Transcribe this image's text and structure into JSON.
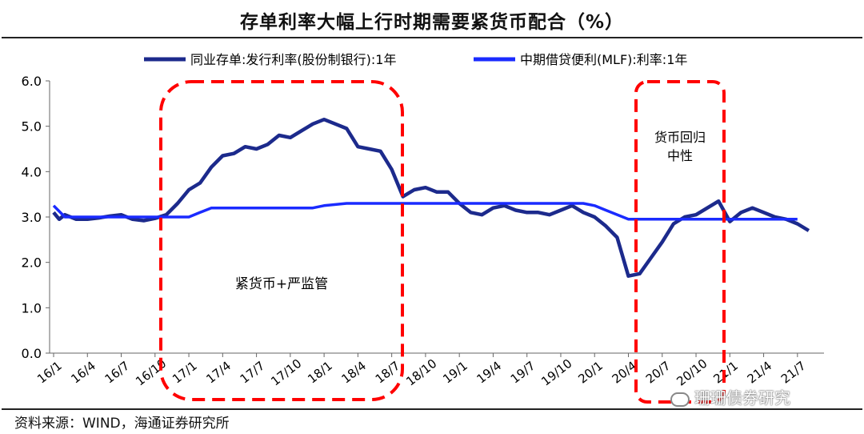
{
  "title": "存单利率大幅上行时期需要紧货币配合（%）",
  "source": "资料来源：WIND，海通证券研究所",
  "watermark": "珊珊债券研究",
  "colors": {
    "series_ncd": "#1c2a8c",
    "series_mlf": "#1a2bff",
    "highlight": "#ff0000",
    "axis": "#666666"
  },
  "chart_data": {
    "type": "line",
    "ylim": [
      0,
      6
    ],
    "yticks": [
      "0.0",
      "1.0",
      "2.0",
      "3.0",
      "4.0",
      "5.0",
      "6.0"
    ],
    "xticks": [
      "16/1",
      "16/4",
      "16/7",
      "16/10",
      "17/1",
      "17/4",
      "17/7",
      "17/10",
      "18/1",
      "18/4",
      "18/7",
      "18/10",
      "19/1",
      "19/4",
      "19/7",
      "19/10",
      "20/1",
      "20/4",
      "20/7",
      "20/10",
      "21/1",
      "21/4",
      "21/7"
    ],
    "grid": false,
    "legend_position": "top",
    "series": [
      {
        "name": "同业存单:发行利率(股份制银行):1年",
        "points": [
          [
            "16/1",
            3.1
          ],
          [
            "16/1.5",
            2.95
          ],
          [
            "16/2",
            3.05
          ],
          [
            "16/3",
            2.95
          ],
          [
            "16/4",
            2.95
          ],
          [
            "16/5",
            2.98
          ],
          [
            "16/6",
            3.02
          ],
          [
            "16/7",
            3.05
          ],
          [
            "16/8",
            2.95
          ],
          [
            "16/9",
            2.92
          ],
          [
            "16/10",
            2.97
          ],
          [
            "16/11",
            3.05
          ],
          [
            "16/12",
            3.3
          ],
          [
            "17/1",
            3.6
          ],
          [
            "17/2",
            3.75
          ],
          [
            "17/3",
            4.1
          ],
          [
            "17/4",
            4.35
          ],
          [
            "17/5",
            4.4
          ],
          [
            "17/6",
            4.55
          ],
          [
            "17/7",
            4.5
          ],
          [
            "17/8",
            4.6
          ],
          [
            "17/9",
            4.8
          ],
          [
            "17/10",
            4.75
          ],
          [
            "17/11",
            4.9
          ],
          [
            "17/12",
            5.05
          ],
          [
            "18/1",
            5.15
          ],
          [
            "18/2",
            5.05
          ],
          [
            "18/3",
            4.95
          ],
          [
            "18/4",
            4.55
          ],
          [
            "18/5",
            4.5
          ],
          [
            "18/6",
            4.45
          ],
          [
            "18/7",
            4.05
          ],
          [
            "18/8",
            3.45
          ],
          [
            "18/9",
            3.6
          ],
          [
            "18/10",
            3.65
          ],
          [
            "18/11",
            3.55
          ],
          [
            "18/12",
            3.55
          ],
          [
            "19/1",
            3.3
          ],
          [
            "19/2",
            3.1
          ],
          [
            "19/3",
            3.05
          ],
          [
            "19/4",
            3.2
          ],
          [
            "19/5",
            3.25
          ],
          [
            "19/6",
            3.15
          ],
          [
            "19/7",
            3.1
          ],
          [
            "19/8",
            3.1
          ],
          [
            "19/9",
            3.05
          ],
          [
            "19/10",
            3.15
          ],
          [
            "19/11",
            3.25
          ],
          [
            "19/12",
            3.1
          ],
          [
            "20/1",
            3.0
          ],
          [
            "20/2",
            2.8
          ],
          [
            "20/3",
            2.55
          ],
          [
            "20/4",
            1.7
          ],
          [
            "20/5",
            1.75
          ],
          [
            "20/6",
            2.1
          ],
          [
            "20/7",
            2.45
          ],
          [
            "20/8",
            2.85
          ],
          [
            "20/9",
            3.0
          ],
          [
            "20/10",
            3.05
          ],
          [
            "20/11",
            3.2
          ],
          [
            "20/12",
            3.35
          ],
          [
            "21/1",
            2.9
          ],
          [
            "21/2",
            3.1
          ],
          [
            "21/3",
            3.2
          ],
          [
            "21/4",
            3.1
          ],
          [
            "21/5",
            3.0
          ],
          [
            "21/6",
            2.95
          ],
          [
            "21/7",
            2.85
          ],
          [
            "21/8",
            2.7
          ]
        ]
      },
      {
        "name": "中期借贷便利(MLF):利率:1年",
        "points": [
          [
            "16/1",
            3.25
          ],
          [
            "16/2",
            3.0
          ],
          [
            "16/10",
            3.0
          ],
          [
            "17/1",
            3.0
          ],
          [
            "17/2",
            3.1
          ],
          [
            "17/3",
            3.2
          ],
          [
            "17/12",
            3.2
          ],
          [
            "18/1",
            3.25
          ],
          [
            "18/3",
            3.3
          ],
          [
            "19/12",
            3.3
          ],
          [
            "20/1",
            3.25
          ],
          [
            "20/2",
            3.15
          ],
          [
            "20/4",
            2.95
          ],
          [
            "21/7",
            2.95
          ]
        ]
      }
    ],
    "annotations": [
      {
        "text": "紧货币+严监管",
        "range": [
          "16/10.7",
          "18/7.6"
        ]
      },
      {
        "text1": "货币回归",
        "text2": "中性",
        "range": [
          "20/4",
          "20/12"
        ]
      }
    ]
  }
}
